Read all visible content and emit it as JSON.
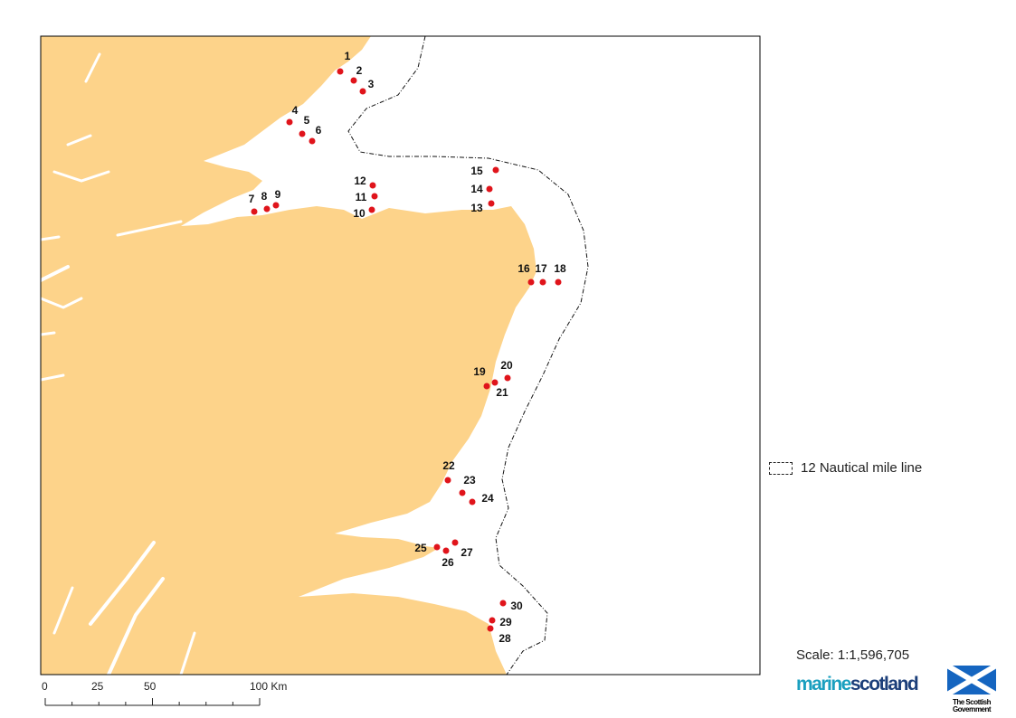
{
  "map": {
    "land_color": "#FDD38A",
    "sea_color": "#FFFFFF",
    "point_color": "#E0141B",
    "points": [
      "1",
      "2",
      "3",
      "4",
      "5",
      "6",
      "7",
      "8",
      "9",
      "10",
      "11",
      "12",
      "13",
      "14",
      "15",
      "16",
      "17",
      "18",
      "19",
      "20",
      "21",
      "22",
      "23",
      "24",
      "25",
      "26",
      "27",
      "28",
      "29",
      "30"
    ]
  },
  "legend": {
    "items": [
      {
        "label": "12 Nautical mile line",
        "symbol": "dashed-box"
      }
    ]
  },
  "scale": {
    "text": "Scale: 1:1,596,705",
    "bar_labels": [
      "0",
      "25",
      "50",
      "100 Km"
    ]
  },
  "logos": {
    "marine_scotland_a": "marine",
    "marine_scotland_b": "scotland",
    "scottish_government": "The Scottish Government"
  }
}
